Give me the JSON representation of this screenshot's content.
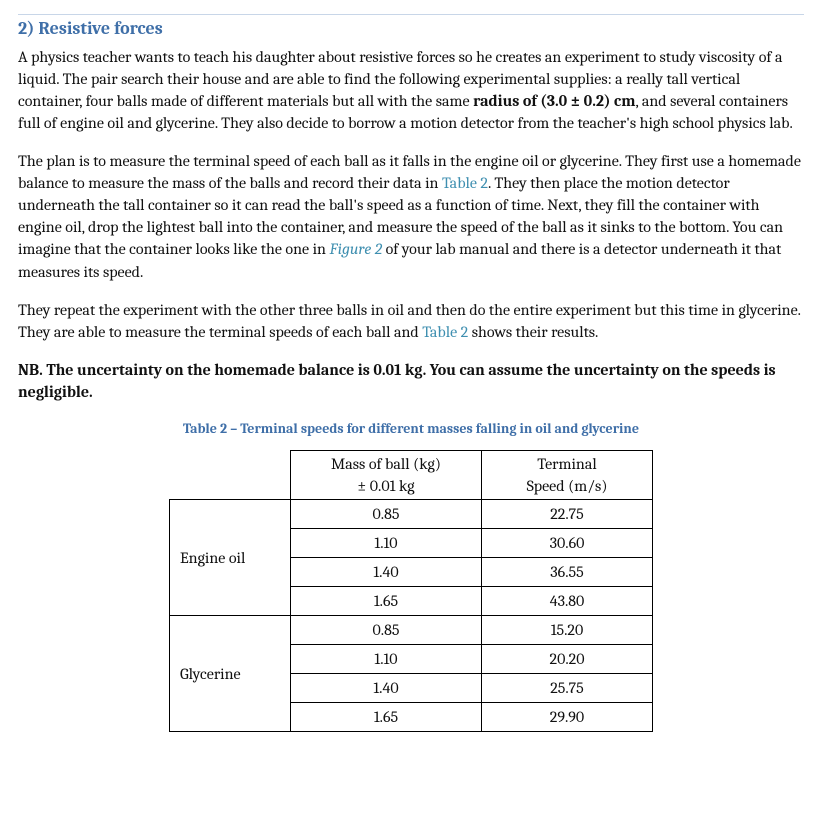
{
  "heading": "2) Resistive forces",
  "para1_a": "A physics teacher wants to teach his daughter about resistive forces so he creates an experiment to study viscosity of a liquid. The pair search their house and are able to find the following experimental supplies: a really tall vertical container, four balls made of different materials but all with the same ",
  "para1_bold": "radius of (3.0 ± 0.2) cm",
  "para1_b": ", and several containers full of engine oil and glycerine. They also decide to borrow a motion detector from the teacher's high school physics lab.",
  "para2_a": "The plan is to measure the terminal speed of each ball as it falls in the engine oil or glycerine. They first use a homemade balance to measure the mass of the balls and record their data in ",
  "ref_t2a": "Table 2",
  "para2_b": ". They then place the motion detector underneath the tall container so it can read the ball's speed as a function of time. Next, they fill the container with engine oil, drop the lightest ball into the container, and measure the speed of the ball as it sinks to the bottom. You can imagine that the container looks like the one in ",
  "ref_fig2": "Figure 2",
  "para2_c": " of your lab manual and there is a detector underneath it that measures its speed.",
  "para3_a": "They repeat the experiment with the other three balls in oil and then do the entire experiment but this time in glycerine. They are able to measure the terminal speeds of each ball and ",
  "ref_t2b": "Table 2",
  "para3_b": " shows their results.",
  "nb": "NB. The uncertainty on the homemade balance is 0.01 kg. You can assume the uncertainty on the speeds is negligible.",
  "caption": "Table 2 – Terminal speeds for different masses falling in oil and glycerine",
  "table": {
    "head_mass_l1": "Mass of ball (kg)",
    "head_mass_l2": "± 0.01 kg",
    "head_speed_l1": "Terminal",
    "head_speed_l2": "Speed (m/s)",
    "liquid1": "Engine oil",
    "liquid2": "Glycerine",
    "rows": [
      {
        "mass": "0.85",
        "speed": "22.75"
      },
      {
        "mass": "1.10",
        "speed": "30.60"
      },
      {
        "mass": "1.40",
        "speed": "36.55"
      },
      {
        "mass": "1.65",
        "speed": "43.80"
      },
      {
        "mass": "0.85",
        "speed": "15.20"
      },
      {
        "mass": "1.10",
        "speed": "20.20"
      },
      {
        "mass": "1.40",
        "speed": "25.75"
      },
      {
        "mass": "1.65",
        "speed": "29.90"
      }
    ]
  }
}
